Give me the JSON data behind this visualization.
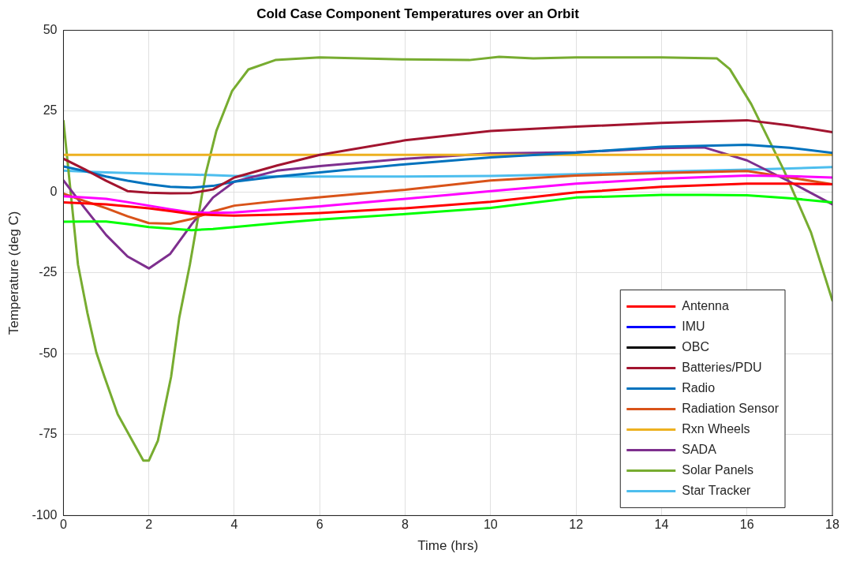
{
  "chart_data": {
    "type": "line",
    "title": "Cold Case Component Temperatures over an Orbit",
    "xlabel": "Time (hrs)",
    "ylabel": "Temperature (deg C)",
    "x": [
      0,
      0.5,
      1,
      1.5,
      2,
      2.5,
      3,
      3.5,
      4,
      5,
      6,
      8,
      10,
      12,
      14,
      15,
      16,
      17,
      18
    ],
    "xlim": [
      0,
      18
    ],
    "xticks": [
      0,
      2,
      4,
      6,
      8,
      10,
      12,
      14,
      16,
      18
    ],
    "ylim": [
      -100,
      50
    ],
    "yticks": [
      -100,
      -75,
      -50,
      -25,
      0,
      25,
      50
    ],
    "grid": true,
    "legend": "bottom right",
    "marker": "none",
    "line_style": "solid",
    "series": [
      {
        "name": "Antenna",
        "color": "#ff0000",
        "values": [
          -3.2,
          -3.5,
          -3.8,
          -4.4,
          -5,
          -5.9,
          -6.8,
          -7.1,
          -7.3,
          -7,
          -6.5,
          -5,
          -3,
          -0.1,
          1.6,
          2.1,
          2.6,
          2.6,
          2.4
        ]
      },
      {
        "color": "#00ff00",
        "values": [
          -9.2,
          -9.1,
          -9.1,
          -9.9,
          -10.8,
          -11.3,
          -11.8,
          -11.4,
          -10.8,
          -9.6,
          -8.5,
          -6.8,
          -4.9,
          -1.7,
          -0.9,
          -0.9,
          -1,
          -1.9,
          -3.2
        ]
      },
      {
        "name": "IMU",
        "color": "#0000ff",
        "values": [
          null,
          null,
          null,
          null,
          null,
          null,
          null,
          null,
          null,
          null,
          null,
          null,
          null,
          null,
          null,
          null,
          null,
          null,
          null
        ]
      },
      {
        "color": "#ff00ff",
        "values": [
          -1.3,
          -1.7,
          -2.1,
          -3.1,
          -4.2,
          -5.3,
          -6.3,
          -6.4,
          -6.3,
          -5.3,
          -4.4,
          -2.1,
          0.3,
          2.6,
          4.1,
          4.6,
          5.1,
          4.9,
          4.5
        ]
      },
      {
        "name": "OBC",
        "color": "#000000",
        "values": [
          null,
          null,
          null,
          null,
          null,
          null,
          null,
          null,
          null,
          null,
          null,
          null,
          null,
          null,
          null,
          null,
          null,
          null,
          null
        ]
      },
      {
        "name": "Batteries/PDU",
        "color": "#a2142f",
        "values": [
          10.3,
          7,
          3.5,
          0.3,
          -0.2,
          -0.4,
          -0.3,
          0.8,
          4.5,
          8.2,
          11.5,
          16,
          18.9,
          20.2,
          21.4,
          21.8,
          22.2,
          20.6,
          18.5
        ]
      },
      {
        "name": "Radio",
        "color": "#0072bd",
        "values": [
          7.9,
          6.5,
          4.8,
          3.5,
          2.4,
          1.6,
          1.4,
          1.9,
          3.2,
          4.8,
          6.1,
          8.6,
          10.7,
          12.2,
          14,
          14.3,
          14.6,
          13.7,
          12.1
        ]
      },
      {
        "name": "Radiation Sensor",
        "color": "#d95319",
        "values": [
          -0.5,
          -2.8,
          -5,
          -7.5,
          -9.6,
          -9.8,
          -8.3,
          -6,
          -4.2,
          -2.8,
          -1.6,
          0.7,
          3.6,
          5.1,
          5.9,
          6.2,
          6.5,
          4.5,
          2.4
        ]
      },
      {
        "name": "Rxn Wheels",
        "color": "#edb120",
        "values": [
          11.5,
          11.5,
          11.5,
          11.5,
          11.5,
          11.5,
          11.5,
          11.5,
          11.5,
          11.5,
          11.5,
          11.5,
          11.5,
          11.5,
          11.5,
          11.5,
          11.5,
          11.5,
          11.5
        ]
      },
      {
        "name": "SADA",
        "color": "#7e2f8e",
        "values": [
          3.6,
          -5,
          -13.3,
          -19.9,
          -23.6,
          -19.1,
          -10,
          -1.7,
          3.2,
          6.6,
          8,
          10.3,
          11.9,
          12.3,
          13.6,
          13.8,
          9.8,
          3.2,
          -3.8
        ]
      },
      {
        "name": "Solar Panels",
        "color": "#77ac30",
        "x": [
          0,
          0.34,
          0.56,
          0.77,
          0.96,
          1.27,
          1.87,
          2,
          2.21,
          2.52,
          2.71,
          2.96,
          3.33,
          3.58,
          3.95,
          4.33,
          4.96,
          6,
          8,
          9.5,
          10.2,
          11,
          12,
          14,
          15.3,
          15.6,
          16.1,
          16.87,
          17.5,
          18
        ],
        "values": [
          22,
          -22.4,
          -37.3,
          -49.6,
          -57.1,
          -68.7,
          -83,
          -83,
          -76.9,
          -57.1,
          -38.9,
          -22.4,
          5.7,
          18.9,
          31.3,
          37.9,
          40.8,
          41.6,
          41,
          40.8,
          41.8,
          41.3,
          41.6,
          41.6,
          41.3,
          38,
          27.2,
          6.6,
          -12.5,
          -33.5
        ]
      },
      {
        "name": "Star Tracker",
        "color": "#4dbeee",
        "values": [
          6.6,
          6.3,
          6.1,
          5.9,
          5.7,
          5.5,
          5.4,
          5.2,
          5,
          4.8,
          4.8,
          4.8,
          5,
          5.5,
          6.3,
          6.6,
          6.9,
          7.3,
          7.7
        ]
      }
    ]
  }
}
